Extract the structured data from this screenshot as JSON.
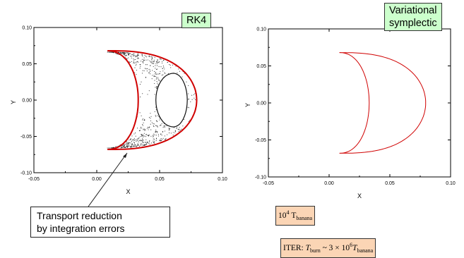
{
  "chart_data": [
    {
      "type": "scatter",
      "title": "",
      "xlabel": "X",
      "ylabel": "Y",
      "xlim": [
        -0.05,
        0.1
      ],
      "ylim": [
        -0.1,
        0.1
      ],
      "xticks": [
        "-0.05",
        "0.00",
        "0.05",
        "0.10"
      ],
      "yticks": [
        "0.10",
        "0.05",
        "0.00",
        "-0.05",
        "-0.10"
      ],
      "grid": false,
      "label": "RK4",
      "series": [
        {
          "kind": "boundary",
          "color": "#d00000",
          "outer": [
            [
              0.07,
              0.063
            ],
            [
              0.0752,
              0.045
            ],
            [
              0.0785,
              0.025
            ],
            [
              0.0795,
              0.0
            ],
            [
              0.0785,
              -0.025
            ],
            [
              0.0752,
              -0.045
            ],
            [
              0.07,
              -0.063
            ]
          ],
          "inner": [
            [
              0.07,
              0.063
            ],
            [
              0.052,
              0.044
            ],
            [
              0.038,
              0.024
            ],
            [
              0.033,
              0.0
            ],
            [
              0.038,
              -0.024
            ],
            [
              0.052,
              -0.044
            ],
            [
              0.07,
              -0.063
            ]
          ],
          "tip_left": [
            0.0085,
            0.0
          ]
        },
        {
          "kind": "scatter",
          "color": "#222222",
          "description_points_estimated": true
        }
      ]
    },
    {
      "type": "line",
      "title": "",
      "xlabel": "X",
      "ylabel": "Y",
      "xlim": [
        -0.05,
        0.1
      ],
      "ylim": [
        -0.1,
        0.1
      ],
      "xticks": [
        "-0.05",
        "0.00",
        "0.05",
        "0.10"
      ],
      "yticks": [
        "0.10",
        "0.05",
        "0.00",
        "-0.05",
        "-0.10"
      ],
      "grid": false,
      "label": "Variational symplectic",
      "series": [
        {
          "kind": "boundary",
          "color": "#d00000"
        }
      ]
    }
  ],
  "annotations": {
    "rk4_label": "RK4",
    "symplectic_line1": "Variational",
    "symplectic_line2": "symplectic",
    "callout_line1": "Transport reduction",
    "callout_line2": "by integration errors",
    "banana_base": "10",
    "banana_exp": "4",
    "banana_T": "T",
    "banana_sub": "banana",
    "iter_prefix": "ITER: ",
    "iter_T": "T",
    "iter_sub_burn": "burn",
    "iter_mid": " ~ 3 × 10",
    "iter_exp": "6",
    "iter_T2": "T",
    "iter_sub_banana": "banana"
  },
  "colors": {
    "orbit": "#d00000",
    "points": "#222222",
    "label_green": "#ccffcc",
    "label_peach": "#fbd5b5"
  }
}
